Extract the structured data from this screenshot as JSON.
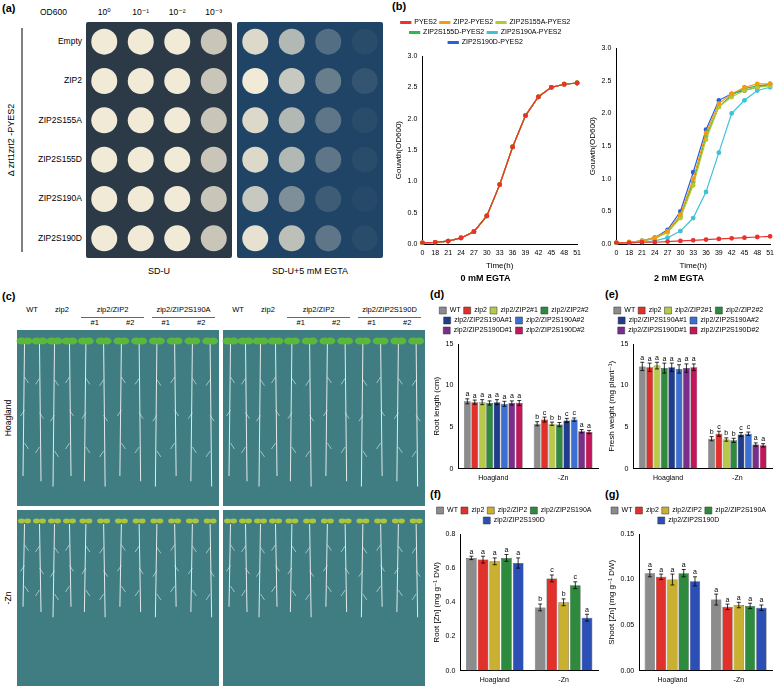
{
  "panel_a": {
    "label": "(a)",
    "strain": "Δ zrt1zrt2 -PYES2",
    "od_label": "OD600",
    "dilutions": [
      "10⁰",
      "10⁻¹",
      "10⁻²",
      "10⁻³"
    ],
    "rows": [
      "Empty",
      "ZIP2",
      "ZIP2S155A",
      "ZIP2S155D",
      "ZIP2S190A",
      "ZIP2S190D"
    ],
    "plates": [
      {
        "medium": "SD-U",
        "growth": [
          [
            1,
            1,
            1,
            0.8
          ],
          [
            1,
            1,
            1,
            0.8
          ],
          [
            1,
            1,
            1,
            0.8
          ],
          [
            1,
            1,
            1,
            0.8
          ],
          [
            1,
            1,
            1,
            0.8
          ],
          [
            1,
            1,
            1,
            0.8
          ]
        ]
      },
      {
        "medium": "SD-U+5 mM EGTA",
        "growth": [
          [
            0.9,
            0.7,
            0.25,
            0.05
          ],
          [
            1,
            0.8,
            0.35,
            0.1
          ],
          [
            0.9,
            0.7,
            0.3,
            0.05
          ],
          [
            0.9,
            0.7,
            0.3,
            0.05
          ],
          [
            0.8,
            0.45,
            0.15,
            0.03
          ],
          [
            0.95,
            0.75,
            0.3,
            0.05
          ]
        ]
      }
    ]
  },
  "panel_c": {
    "label": "(c)",
    "rows": [
      "Hoagland",
      "-Zn"
    ],
    "photos": [
      {
        "columns": [
          {
            "name": "WT"
          },
          {
            "name": "zip2"
          },
          {
            "name": "zip2/ZIP2",
            "lines": [
              "#1",
              "#2"
            ]
          },
          {
            "name": "zip2/ZIP2S190A",
            "lines": [
              "#1",
              "#2"
            ]
          }
        ]
      },
      {
        "columns": [
          {
            "name": "WT"
          },
          {
            "name": "zip2"
          },
          {
            "name": "zip2/ZIP2",
            "lines": [
              "#1",
              "#2"
            ]
          },
          {
            "name": "zip2/ZIP2S190D",
            "lines": [
              "#1",
              "#2"
            ]
          }
        ]
      }
    ]
  },
  "chart_data": [
    {
      "panel_label": "(b)",
      "type": "line",
      "title": "0 mM EGTA",
      "x_label": "Time(h)",
      "y_label": "Gouwth(OD600)",
      "categories": [
        "0",
        "18",
        "21",
        "24",
        "27",
        "30",
        "33",
        "36",
        "39",
        "42",
        "45",
        "48",
        "51"
      ],
      "ylim": [
        0,
        3
      ],
      "yticks": [
        {
          "value": 0,
          "label": "0.0"
        },
        0.5,
        {
          "value": 1,
          "label": "1.0"
        },
        1.5,
        {
          "value": 2,
          "label": "2.0"
        },
        2.5,
        {
          "value": 3,
          "label": "3.0"
        }
      ],
      "grid": false,
      "legend": "top",
      "marker": "circle",
      "line_style": "solid",
      "series": [
        {
          "name": "PYES2",
          "color": "#e8322b",
          "values": [
            0.02,
            0.03,
            0.05,
            0.1,
            0.2,
            0.45,
            0.95,
            1.55,
            2.05,
            2.35,
            2.5,
            2.55,
            2.57
          ]
        },
        {
          "name": "ZIP2-PYES2",
          "color": "#f39c12",
          "values": [
            0.02,
            0.03,
            0.05,
            0.1,
            0.2,
            0.45,
            0.95,
            1.55,
            2.05,
            2.35,
            2.5,
            2.55,
            2.57
          ]
        },
        {
          "name": "ZIP2S155A-PYES2",
          "color": "#b5c934",
          "values": [
            0.02,
            0.03,
            0.05,
            0.1,
            0.2,
            0.45,
            0.95,
            1.55,
            2.05,
            2.35,
            2.5,
            2.55,
            2.57
          ]
        },
        {
          "name": "ZIP2S155D-PYES2",
          "color": "#2fb84f",
          "values": [
            0.02,
            0.03,
            0.05,
            0.1,
            0.2,
            0.45,
            0.95,
            1.55,
            2.05,
            2.35,
            2.5,
            2.55,
            2.57
          ]
        },
        {
          "name": "ZIP2S190A-PYES2",
          "color": "#3fc1d6",
          "values": [
            0.02,
            0.03,
            0.05,
            0.1,
            0.2,
            0.45,
            0.95,
            1.55,
            2.05,
            2.35,
            2.5,
            2.55,
            2.57
          ]
        },
        {
          "name": "ZIP2S190D-PYES2",
          "color": "#2b5fd9",
          "values": [
            0.02,
            0.03,
            0.05,
            0.1,
            0.2,
            0.45,
            0.95,
            1.55,
            2.05,
            2.35,
            2.5,
            2.55,
            2.57
          ]
        }
      ]
    },
    {
      "type": "line",
      "title": "2 mM EGTA",
      "x_label": "Time(h)",
      "y_label": "Gouwth(OD600)",
      "categories": [
        "0",
        "18",
        "21",
        "24",
        "27",
        "30",
        "33",
        "36",
        "39",
        "42",
        "45",
        "48",
        "51"
      ],
      "ylim": [
        0,
        3
      ],
      "yticks": [
        {
          "value": 0,
          "label": "0.0"
        },
        0.5,
        {
          "value": 1,
          "label": "1.0"
        },
        1.5,
        {
          "value": 2,
          "label": "2.0"
        },
        2.5,
        {
          "value": 3,
          "label": "3.0"
        }
      ],
      "grid": false,
      "legend": "none",
      "marker": "circle",
      "line_style": "solid",
      "series": [
        {
          "name": "PYES2",
          "color": "#e8322b",
          "values": [
            0.02,
            0.02,
            0.03,
            0.03,
            0.04,
            0.05,
            0.06,
            0.07,
            0.08,
            0.09,
            0.1,
            0.11,
            0.12
          ]
        },
        {
          "name": "ZIP2-PYES2",
          "color": "#f39c12",
          "values": [
            0.02,
            0.03,
            0.05,
            0.1,
            0.2,
            0.45,
            1.0,
            1.7,
            2.15,
            2.3,
            2.4,
            2.45,
            2.45
          ]
        },
        {
          "name": "ZIP2S155A-PYES2",
          "color": "#b5c934",
          "values": [
            0.02,
            0.03,
            0.05,
            0.09,
            0.18,
            0.4,
            0.9,
            1.6,
            2.1,
            2.25,
            2.35,
            2.4,
            2.42
          ]
        },
        {
          "name": "ZIP2S155D-PYES2",
          "color": "#2fb84f",
          "values": [
            0.02,
            0.03,
            0.05,
            0.09,
            0.19,
            0.42,
            0.95,
            1.65,
            2.1,
            2.28,
            2.38,
            2.42,
            2.44
          ]
        },
        {
          "name": "ZIP2S190A-PYES2",
          "color": "#3fc1d6",
          "values": [
            0.02,
            0.02,
            0.03,
            0.05,
            0.1,
            0.2,
            0.4,
            0.8,
            1.4,
            2.0,
            2.2,
            2.35,
            2.4
          ]
        },
        {
          "name": "ZIP2S190D-PYES2",
          "color": "#2b5fd9",
          "values": [
            0.02,
            0.03,
            0.05,
            0.1,
            0.22,
            0.5,
            1.1,
            1.75,
            2.2,
            2.3,
            2.35,
            2.4,
            2.45
          ]
        }
      ]
    },
    {
      "panel_label": "(d)",
      "type": "bar",
      "y_label": "Root length (cm)",
      "categories": [
        "Hoagland",
        "-Zn"
      ],
      "ylim": [
        0,
        15
      ],
      "yticks": [
        0,
        5,
        10,
        15
      ],
      "grid": false,
      "legend": "top",
      "series": [
        {
          "name": "WT",
          "color": "#8c8c8c",
          "values": [
            8.1,
            5.4
          ],
          "errors": [
            0.3,
            0.25
          ],
          "letters": [
            "a",
            "b"
          ]
        },
        {
          "name": "zip2",
          "color": "#e0312b",
          "values": [
            8.0,
            5.9
          ],
          "errors": [
            0.25,
            0.3
          ],
          "letters": [
            "a",
            "c"
          ]
        },
        {
          "name": "zip2/ZIP2#1",
          "color": "#b8c94a",
          "values": [
            8.0,
            5.4
          ],
          "errors": [
            0.3,
            0.2
          ],
          "letters": [
            "a",
            "b"
          ]
        },
        {
          "name": "zip2/ZIP2#2",
          "color": "#2e8b3e",
          "values": [
            7.9,
            5.3
          ],
          "errors": [
            0.25,
            0.25
          ],
          "letters": [
            "a",
            "b"
          ]
        },
        {
          "name": "zip2/ZIP2S190A#1",
          "color": "#1f3d8c",
          "values": [
            8.0,
            5.8
          ],
          "errors": [
            0.3,
            0.25
          ],
          "letters": [
            "a",
            "c"
          ]
        },
        {
          "name": "zip2/ZIP2S190A#2",
          "color": "#3b6fd1",
          "values": [
            7.8,
            5.9
          ],
          "errors": [
            0.3,
            0.2
          ],
          "letters": [
            "a",
            "c"
          ]
        },
        {
          "name": "zip2/ZIP2S190D#1",
          "color": "#7b2d8e",
          "values": [
            7.9,
            4.5
          ],
          "errors": [
            0.25,
            0.2
          ],
          "letters": [
            "a",
            "a"
          ]
        },
        {
          "name": "zip2/ZIP2S190D#2",
          "color": "#c2185b",
          "values": [
            7.9,
            4.4
          ],
          "errors": [
            0.3,
            0.2
          ],
          "letters": [
            "a",
            "a"
          ]
        }
      ]
    },
    {
      "panel_label": "(e)",
      "type": "bar",
      "y_label": "Fresh weight (mg plant⁻¹)",
      "categories": [
        "Hoagland",
        "-Zn"
      ],
      "ylim": [
        0,
        15
      ],
      "yticks": [
        0,
        5,
        10,
        15
      ],
      "grid": false,
      "legend": "top",
      "series": [
        {
          "name": "WT",
          "color": "#8c8c8c",
          "values": [
            12.3,
            3.6
          ],
          "errors": [
            0.5,
            0.25
          ],
          "letters": [
            "a",
            "b"
          ]
        },
        {
          "name": "zip2",
          "color": "#e0312b",
          "values": [
            12.2,
            4.2
          ],
          "errors": [
            0.5,
            0.3
          ],
          "letters": [
            "a",
            "c"
          ]
        },
        {
          "name": "zip2/ZIP2#1",
          "color": "#b8c94a",
          "values": [
            12.4,
            3.5
          ],
          "errors": [
            0.4,
            0.2
          ],
          "letters": [
            "a",
            "b"
          ]
        },
        {
          "name": "zip2/ZIP2#2",
          "color": "#2e8b3e",
          "values": [
            12.1,
            3.4
          ],
          "errors": [
            0.6,
            0.25
          ],
          "letters": [
            "a",
            "b"
          ]
        },
        {
          "name": "zip2/ZIP2S190A#1",
          "color": "#1f3d8c",
          "values": [
            12.2,
            4.1
          ],
          "errors": [
            0.5,
            0.25
          ],
          "letters": [
            "a",
            "c"
          ]
        },
        {
          "name": "zip2/ZIP2S190A#2",
          "color": "#3b6fd1",
          "values": [
            12.0,
            4.2
          ],
          "errors": [
            0.5,
            0.2
          ],
          "letters": [
            "a",
            "c"
          ]
        },
        {
          "name": "zip2/ZIP2S190D#1",
          "color": "#7b2d8e",
          "values": [
            12.1,
            2.9
          ],
          "errors": [
            0.5,
            0.2
          ],
          "letters": [
            "a",
            "a"
          ]
        },
        {
          "name": "zip2/ZIP2S190D#2",
          "color": "#c2185b",
          "values": [
            12.2,
            2.8
          ],
          "errors": [
            0.4,
            0.2
          ],
          "letters": [
            "a",
            "a"
          ]
        }
      ]
    },
    {
      "panel_label": "(f)",
      "type": "bar",
      "y_label": "Root [Zn] (mg g⁻¹ DW)",
      "categories": [
        "Hoagland",
        "-Zn"
      ],
      "ylim": [
        0,
        0.8
      ],
      "yticks": [
        {
          "value": 0,
          "label": "0.0"
        },
        0.2,
        0.4,
        0.6,
        0.8
      ],
      "grid": false,
      "legend": "top",
      "series": [
        {
          "name": "WT",
          "color": "#8c8c8c",
          "values": [
            0.66,
            0.37
          ],
          "errors": [
            0.01,
            0.02
          ],
          "letters": [
            "a",
            "b"
          ]
        },
        {
          "name": "zip2",
          "color": "#e0312b",
          "values": [
            0.65,
            0.54
          ],
          "errors": [
            0.02,
            0.02
          ],
          "letters": [
            "a",
            "c"
          ]
        },
        {
          "name": "zip2/ZIP2",
          "color": "#c9b030",
          "values": [
            0.64,
            0.4
          ],
          "errors": [
            0.02,
            0.02
          ],
          "letters": [
            "a",
            "b"
          ]
        },
        {
          "name": "zip2/ZIP2S190A",
          "color": "#2e8b3e",
          "values": [
            0.66,
            0.5
          ],
          "errors": [
            0.02,
            0.02
          ],
          "letters": [
            "a",
            "c"
          ]
        },
        {
          "name": "zip2/ZIP2S190D",
          "color": "#2b4fb5",
          "values": [
            0.63,
            0.31
          ],
          "errors": [
            0.03,
            0.02
          ],
          "letters": [
            "a",
            "a"
          ]
        }
      ]
    },
    {
      "panel_label": "(g)",
      "type": "bar",
      "y_label": "Shoot [Zn] (mg g⁻¹ DW)",
      "categories": [
        "Hoagland",
        "-Zn"
      ],
      "ylim": [
        0,
        0.15
      ],
      "yticks": [
        {
          "value": 0,
          "label": "0.00"
        },
        0.05,
        {
          "value": 0.1,
          "label": "0.10"
        },
        0.15
      ],
      "grid": false,
      "legend": "top",
      "series": [
        {
          "name": "WT",
          "color": "#8c8c8c",
          "values": [
            0.107,
            0.078
          ],
          "errors": [
            0.004,
            0.006
          ],
          "letters": [
            "a",
            "a"
          ]
        },
        {
          "name": "zip2",
          "color": "#e0312b",
          "values": [
            0.103,
            0.07
          ],
          "errors": [
            0.003,
            0.003
          ],
          "letters": [
            "a",
            "a"
          ]
        },
        {
          "name": "zip2/ZIP2",
          "color": "#c9b030",
          "values": [
            0.1,
            0.072
          ],
          "errors": [
            0.006,
            0.003
          ],
          "letters": [
            "a",
            "a"
          ]
        },
        {
          "name": "zip2/ZIP2S190A",
          "color": "#2e8b3e",
          "values": [
            0.107,
            0.071
          ],
          "errors": [
            0.004,
            0.003
          ],
          "letters": [
            "a",
            "a"
          ]
        },
        {
          "name": "zip2/ZIP2S190D",
          "color": "#2b4fb5",
          "values": [
            0.098,
            0.069
          ],
          "errors": [
            0.005,
            0.003
          ],
          "letters": [
            "a",
            "a"
          ]
        }
      ]
    }
  ]
}
